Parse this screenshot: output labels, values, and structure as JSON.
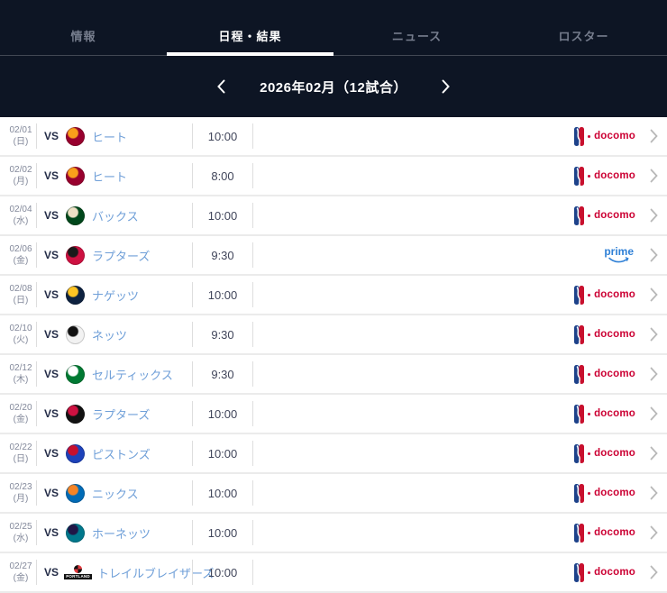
{
  "header": {
    "tabs": [
      {
        "label": "情報",
        "active": false
      },
      {
        "label": "日程・結果",
        "active": true
      },
      {
        "label": "ニュース",
        "active": false
      },
      {
        "label": "ロスター",
        "active": false
      }
    ]
  },
  "month_nav": {
    "title": "2026年02月（12試合）"
  },
  "broadcasters": {
    "docomo_label": "docomo",
    "prime_label": "prime"
  },
  "colors": {
    "header_bg": "#0d1524",
    "active_tab_underline": "#ffffff",
    "team_link_blue": "#6f9fd8",
    "docomo_red": "#cc0033",
    "prime_blue": "#2f80d6",
    "nba_logo_blue": "#1d428a",
    "nba_logo_red": "#c8102e",
    "row_separator": "#ebebeb"
  },
  "games": [
    {
      "date": "02/01",
      "day": "(日)",
      "vs": "VS",
      "team": "ヒート",
      "team_id": "heat",
      "logo_primary": "#98002E",
      "logo_secondary": "#F9A01B",
      "time": "10:00",
      "broadcaster": "nba-docomo"
    },
    {
      "date": "02/02",
      "day": "(月)",
      "vs": "VS",
      "team": "ヒート",
      "team_id": "heat",
      "logo_primary": "#98002E",
      "logo_secondary": "#F9A01B",
      "time": "8:00",
      "broadcaster": "nba-docomo"
    },
    {
      "date": "02/04",
      "day": "(水)",
      "vs": "VS",
      "team": "バックス",
      "team_id": "bucks",
      "logo_primary": "#00471B",
      "logo_secondary": "#EEE1C6",
      "time": "10:00",
      "broadcaster": "nba-docomo"
    },
    {
      "date": "02/06",
      "day": "(金)",
      "vs": "VS",
      "team": "ラプターズ",
      "team_id": "raptors",
      "logo_primary": "#CE1141",
      "logo_secondary": "#1A1A1A",
      "time": "9:30",
      "broadcaster": "prime"
    },
    {
      "date": "02/08",
      "day": "(日)",
      "vs": "VS",
      "team": "ナゲッツ",
      "team_id": "nuggets",
      "logo_primary": "#0E2240",
      "logo_secondary": "#FEC524",
      "time": "10:00",
      "broadcaster": "nba-docomo"
    },
    {
      "date": "02/10",
      "day": "(火)",
      "vs": "VS",
      "team": "ネッツ",
      "team_id": "nets",
      "logo_primary": "#F2F2F2",
      "logo_secondary": "#111111",
      "time": "9:30",
      "broadcaster": "nba-docomo"
    },
    {
      "date": "02/12",
      "day": "(木)",
      "vs": "VS",
      "team": "セルティックス",
      "team_id": "celtics",
      "logo_primary": "#007A33",
      "logo_secondary": "#FFFFFF",
      "time": "9:30",
      "broadcaster": "nba-docomo"
    },
    {
      "date": "02/20",
      "day": "(金)",
      "vs": "VS",
      "team": "ラプターズ",
      "team_id": "raptors",
      "logo_primary": "#121212",
      "logo_secondary": "#CE1141",
      "time": "10:00",
      "broadcaster": "nba-docomo"
    },
    {
      "date": "02/22",
      "day": "(日)",
      "vs": "VS",
      "team": "ピストンズ",
      "team_id": "pistons",
      "logo_primary": "#1D42BA",
      "logo_secondary": "#C8102E",
      "time": "10:00",
      "broadcaster": "nba-docomo"
    },
    {
      "date": "02/23",
      "day": "(月)",
      "vs": "VS",
      "team": "ニックス",
      "team_id": "knicks",
      "logo_primary": "#006BB6",
      "logo_secondary": "#F58426",
      "time": "10:00",
      "broadcaster": "nba-docomo"
    },
    {
      "date": "02/25",
      "day": "(水)",
      "vs": "VS",
      "team": "ホーネッツ",
      "team_id": "hornets",
      "logo_primary": "#00788C",
      "logo_secondary": "#201747",
      "time": "10:00",
      "broadcaster": "nba-docomo"
    },
    {
      "date": "02/27",
      "day": "(金)",
      "vs": "VS",
      "team": "トレイルブレイザーズ",
      "team_id": "trail-blazers",
      "logo_primary": "#E03A3E",
      "logo_secondary": "#111111",
      "logo_text": "PORTLAND",
      "time": "10:00",
      "broadcaster": "nba-docomo"
    }
  ]
}
